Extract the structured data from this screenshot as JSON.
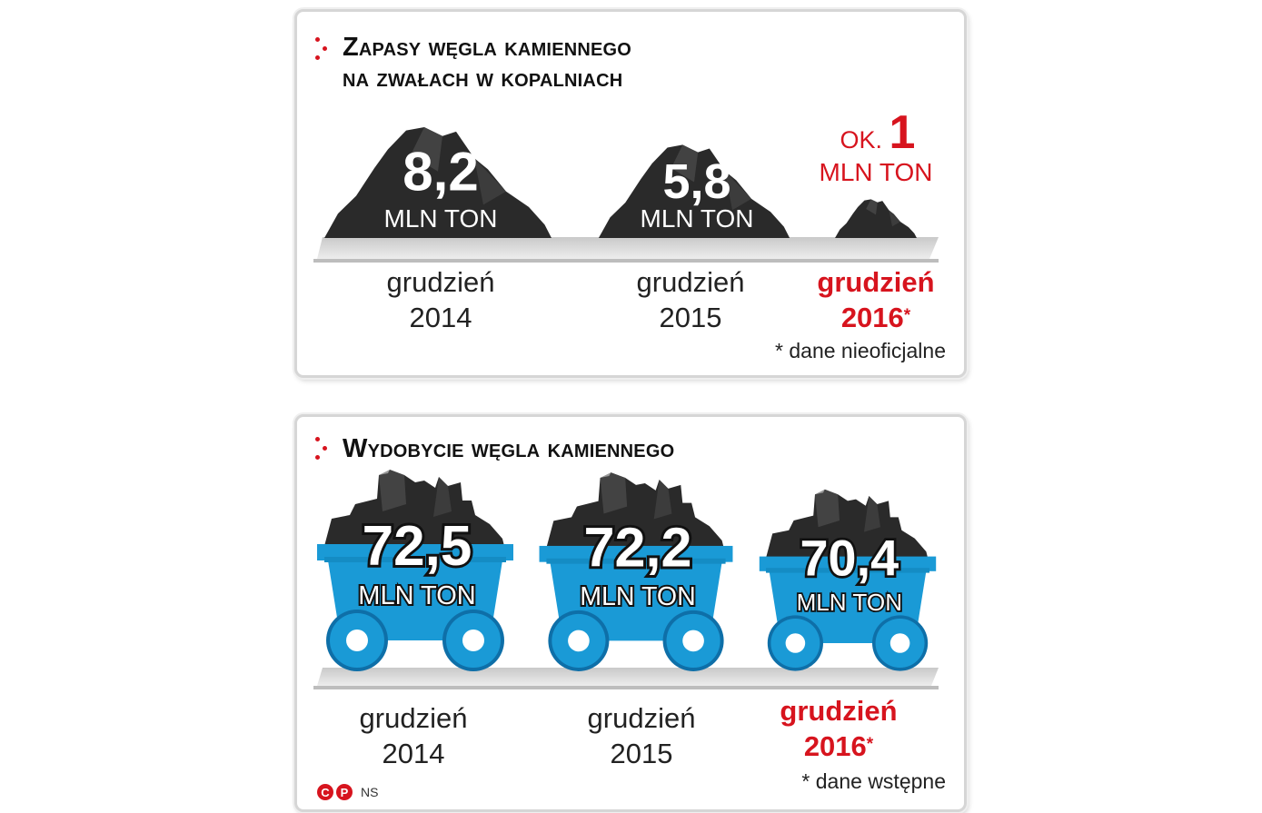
{
  "chart_data": [
    {
      "type": "bar",
      "title": "Zapasy węgla kamiennego na zwałach w kopalniach",
      "title_lines": [
        "Zapasy węgla kamiennego",
        "na zwałach w kopalniach"
      ],
      "categories": [
        {
          "line1": "grudzień",
          "line2": "2014",
          "star": ""
        },
        {
          "line1": "grudzień",
          "line2": "2015",
          "star": ""
        },
        {
          "line1": "grudzień",
          "line2": "2016",
          "star": "*"
        }
      ],
      "values": [
        8.2,
        5.8,
        1
      ],
      "value_labels": [
        "8,2",
        "5,8",
        "1"
      ],
      "prefix_labels": [
        "",
        "",
        "OK."
      ],
      "unit": "MLN TON",
      "footnote": "* dane nieoficjalne",
      "highlight_color": "#d7141e",
      "coal_color": "#2a2a2a"
    },
    {
      "type": "bar",
      "title": "Wydobycie węgla kamiennego",
      "title_lines": [
        "Wydobycie węgla kamiennego"
      ],
      "categories": [
        {
          "line1": "grudzień",
          "line2": "2014",
          "star": ""
        },
        {
          "line1": "grudzień",
          "line2": "2015",
          "star": ""
        },
        {
          "line1": "grudzień",
          "line2": "2016",
          "star": "*"
        }
      ],
      "values": [
        72.5,
        72.2,
        70.4
      ],
      "value_labels": [
        "72,5",
        "72,2",
        "70,4"
      ],
      "unit": "MLN TON",
      "footnote": "* dane wstępne",
      "highlight_color": "#d7141e",
      "cart_color": "#1a9ad6",
      "wheel_color": "#0e6fa8"
    }
  ],
  "credit": {
    "c_mark": "C",
    "p_mark": "P",
    "author": "NS"
  }
}
